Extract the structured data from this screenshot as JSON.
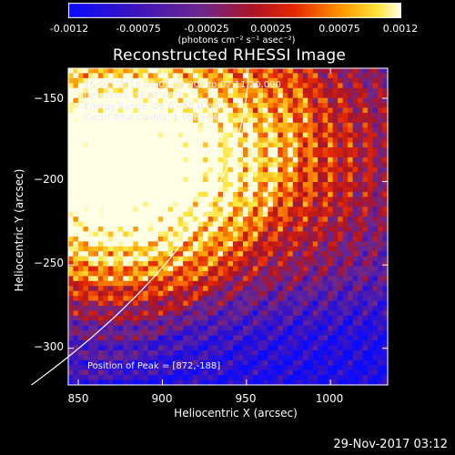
{
  "colorbar": {
    "ticks": [
      "-0.0012",
      "-0.00075",
      "-0.00025",
      "0.00025",
      "0.00075",
      "0.0012"
    ],
    "tick_values": [
      -0.0012,
      -0.00075,
      -0.00025,
      0.00025,
      0.00075,
      0.0012
    ],
    "units_label": "(photons cm⁻² s⁻¹ asec⁻²)"
  },
  "chart_data": {
    "type": "heatmap",
    "title": "Reconstructed RHESSI Image",
    "xlabel": "Heliocentric X (arcsec)",
    "ylabel": "Heliocentric Y (arcsec)",
    "xlim": [
      844,
      1034
    ],
    "ylim": [
      -322,
      -132
    ],
    "x_ticks": [
      850,
      900,
      950,
      1000
    ],
    "y_ticks": [
      -150,
      -200,
      -250,
      -300
    ],
    "x_tick_labels": [
      "850",
      "900",
      "950",
      "1000"
    ],
    "y_tick_labels": [
      "−150",
      "−200",
      "−250",
      "−300"
    ],
    "peak": [
      872,
      -188
    ],
    "colormap": "blue-purple-red-yellow-white",
    "annotations": [
      "16-Oct-2016 07:01:20.000 to 07:11:20.000",
      "Detectors: 3F 8F AF 9",
      "Energy Range: 25.0 - 50.0 keV",
      "Clean    Total counts: 1.05E+04"
    ],
    "peak_label": "Position of Peak = [872,-188]"
  },
  "footer": {
    "timestamp": "29-Nov-2017 03:12"
  }
}
